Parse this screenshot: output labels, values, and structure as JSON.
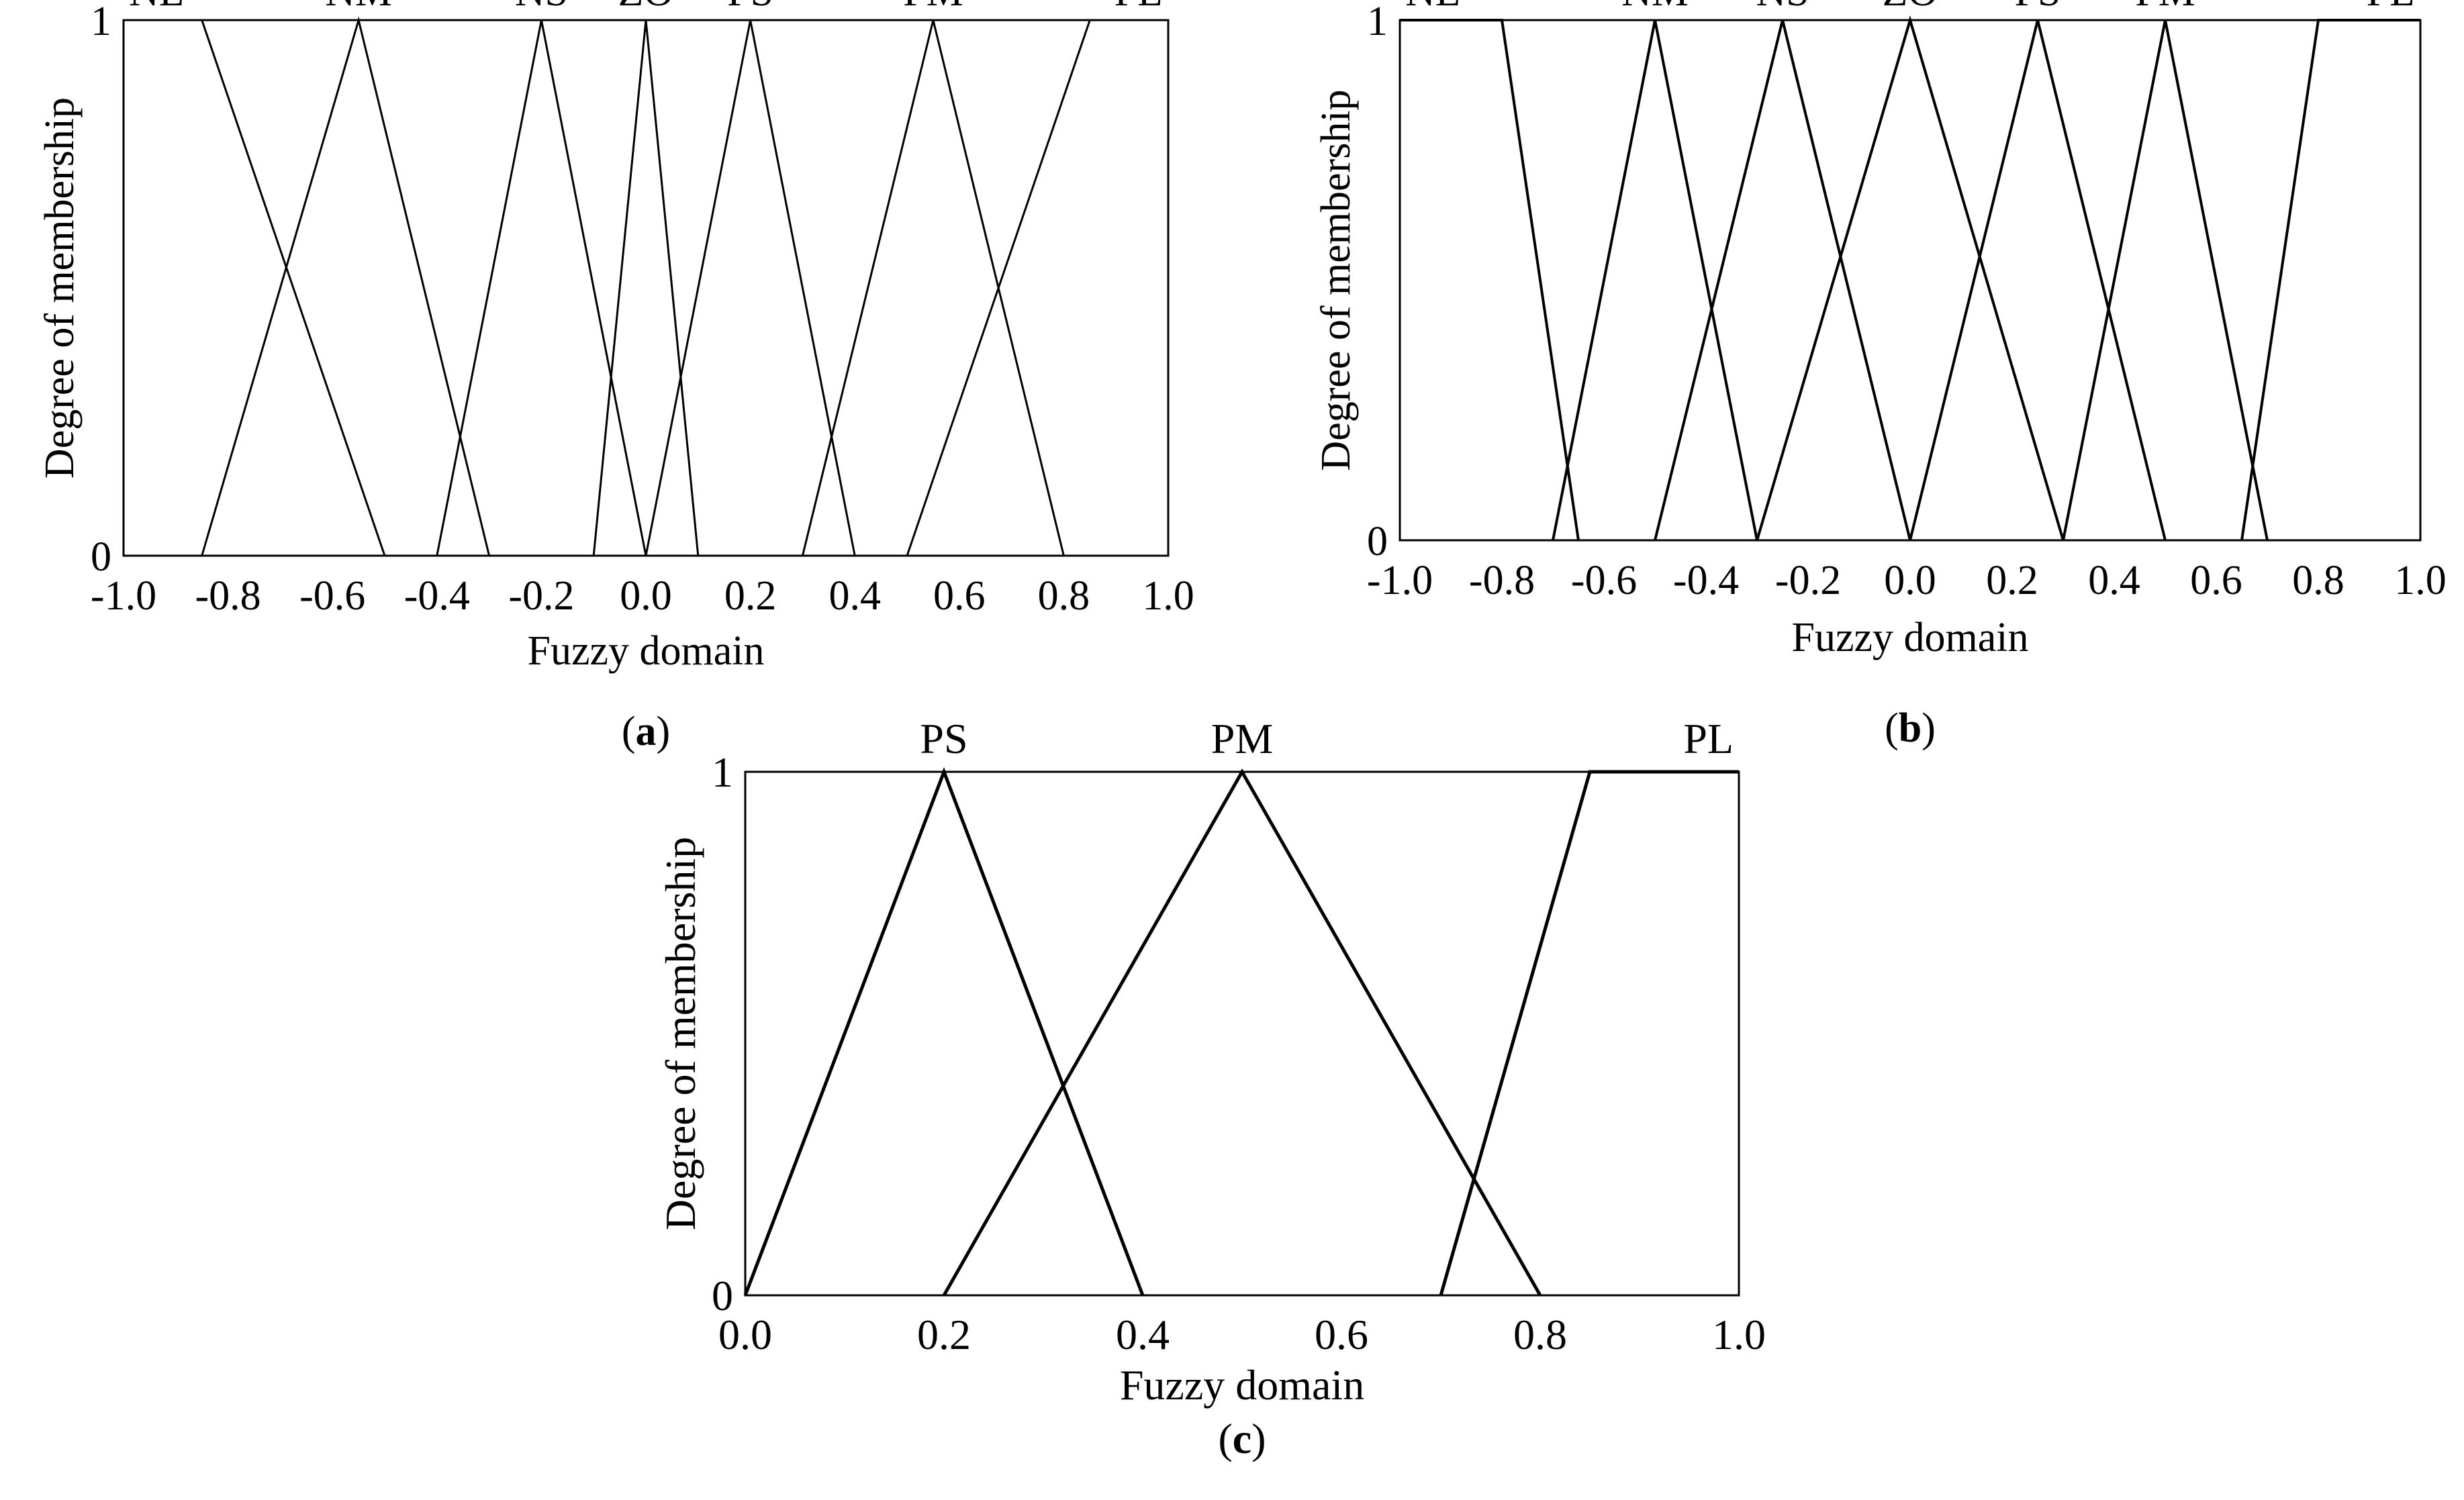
{
  "chart_data": [
    {
      "type": "line",
      "panel_label": "a",
      "xlabel": "Fuzzy domain",
      "ylabel": "Degree of membership",
      "xlim": [
        -1.0,
        1.0
      ],
      "ylim": [
        0,
        1
      ],
      "xticks": [
        "-1.0",
        "-0.8",
        "-0.6",
        "-0.4",
        "-0.2",
        "0.0",
        "0.2",
        "0.4",
        "0.6",
        "0.8",
        "1.0"
      ],
      "xtick_values": [
        -1.0,
        -0.8,
        -0.6,
        -0.4,
        -0.2,
        0.0,
        0.2,
        0.4,
        0.6,
        0.8,
        1.0
      ],
      "yticks": [
        "0",
        "1"
      ],
      "ytick_values": [
        0,
        1
      ],
      "grid": false,
      "line_color": "#000000",
      "series": [
        {
          "name": "NL",
          "x": [
            -1.0,
            -0.85,
            -0.5
          ],
          "y": [
            1,
            1,
            0
          ]
        },
        {
          "name": "NM",
          "x": [
            -0.85,
            -0.55,
            -0.3
          ],
          "y": [
            0,
            1,
            0
          ]
        },
        {
          "name": "NS",
          "x": [
            -0.4,
            -0.2,
            0.0
          ],
          "y": [
            0,
            1,
            0
          ]
        },
        {
          "name": "ZO",
          "x": [
            -0.1,
            0.0,
            0.1
          ],
          "y": [
            0,
            1,
            0
          ]
        },
        {
          "name": "PS",
          "x": [
            0.0,
            0.2,
            0.4
          ],
          "y": [
            0,
            1,
            0
          ]
        },
        {
          "name": "PM",
          "x": [
            0.3,
            0.55,
            0.8
          ],
          "y": [
            0,
            1,
            0
          ]
        },
        {
          "name": "PL",
          "x": [
            0.5,
            0.85,
            1.0
          ],
          "y": [
            0,
            1,
            1
          ]
        }
      ]
    },
    {
      "type": "line",
      "panel_label": "b",
      "xlabel": "Fuzzy domain",
      "ylabel": "Degree of membership",
      "xlim": [
        -1.0,
        1.0
      ],
      "ylim": [
        0,
        1
      ],
      "xticks": [
        "-1.0",
        "-0.8",
        "-0.6",
        "-0.4",
        "-0.2",
        "0.0",
        "0.2",
        "0.4",
        "0.6",
        "0.8",
        "1.0"
      ],
      "xtick_values": [
        -1.0,
        -0.8,
        -0.6,
        -0.4,
        -0.2,
        0.0,
        0.2,
        0.4,
        0.6,
        0.8,
        1.0
      ],
      "yticks": [
        "0",
        "1"
      ],
      "ytick_values": [
        0,
        1
      ],
      "grid": false,
      "line_color": "#000000",
      "series": [
        {
          "name": "NL",
          "x": [
            -1.0,
            -0.8,
            -0.65
          ],
          "y": [
            1,
            1,
            0
          ]
        },
        {
          "name": "NM",
          "x": [
            -0.7,
            -0.5,
            -0.3
          ],
          "y": [
            0,
            1,
            0
          ]
        },
        {
          "name": "NS",
          "x": [
            -0.5,
            -0.25,
            0.0
          ],
          "y": [
            0,
            1,
            0
          ]
        },
        {
          "name": "ZO",
          "x": [
            -0.3,
            0.0,
            0.3
          ],
          "y": [
            0,
            1,
            0
          ]
        },
        {
          "name": "PS",
          "x": [
            0.0,
            0.25,
            0.5
          ],
          "y": [
            0,
            1,
            0
          ]
        },
        {
          "name": "PM",
          "x": [
            0.3,
            0.5,
            0.7
          ],
          "y": [
            0,
            1,
            0
          ]
        },
        {
          "name": "PL",
          "x": [
            0.65,
            0.8,
            1.0
          ],
          "y": [
            0,
            1,
            1
          ]
        }
      ]
    },
    {
      "type": "line",
      "panel_label": "c",
      "xlabel": "Fuzzy domain",
      "ylabel": "Degree of membership",
      "xlim": [
        0.0,
        1.0
      ],
      "ylim": [
        0,
        1
      ],
      "xticks": [
        "0.0",
        "0.2",
        "0.4",
        "0.6",
        "0.8",
        "1.0"
      ],
      "xtick_values": [
        0.0,
        0.2,
        0.4,
        0.6,
        0.8,
        1.0
      ],
      "yticks": [
        "0",
        "1"
      ],
      "ytick_values": [
        0,
        1
      ],
      "grid": false,
      "line_color": "#000000",
      "series": [
        {
          "name": "PS",
          "x": [
            0.0,
            0.2,
            0.4
          ],
          "y": [
            0,
            1,
            0
          ]
        },
        {
          "name": "PM",
          "x": [
            0.2,
            0.5,
            0.8
          ],
          "y": [
            0,
            1,
            0
          ]
        },
        {
          "name": "PL",
          "x": [
            0.7,
            0.85,
            1.0
          ],
          "y": [
            0,
            1,
            1
          ]
        }
      ]
    }
  ]
}
